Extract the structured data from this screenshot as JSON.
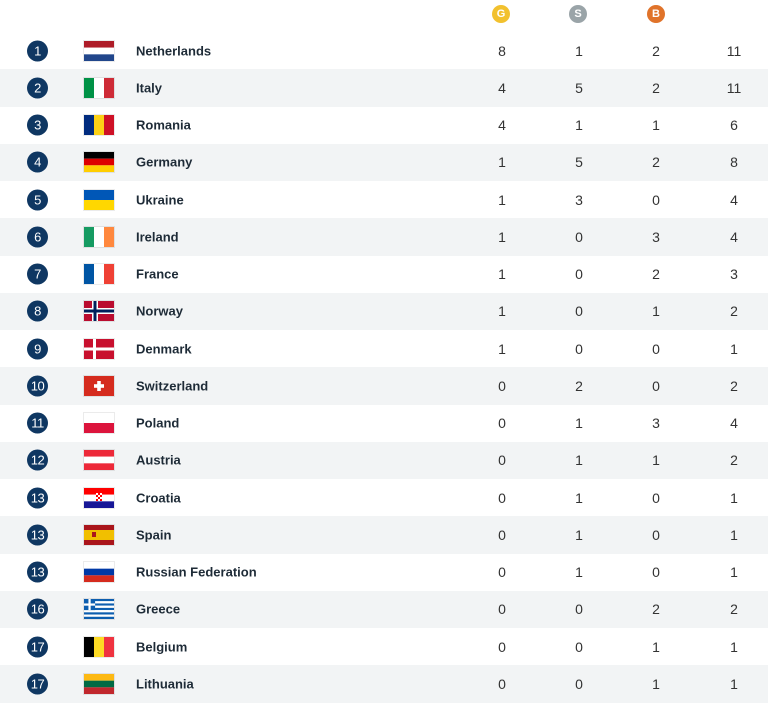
{
  "header": {
    "gold_label": "G",
    "silver_label": "S",
    "bronze_label": "B"
  },
  "rows": [
    {
      "rank": "1",
      "country": "Netherlands",
      "flag": "netherlands",
      "gold": "8",
      "silver": "1",
      "bronze": "2",
      "total": "11"
    },
    {
      "rank": "2",
      "country": "Italy",
      "flag": "italy",
      "gold": "4",
      "silver": "5",
      "bronze": "2",
      "total": "11"
    },
    {
      "rank": "3",
      "country": "Romania",
      "flag": "romania",
      "gold": "4",
      "silver": "1",
      "bronze": "1",
      "total": "6"
    },
    {
      "rank": "4",
      "country": "Germany",
      "flag": "germany",
      "gold": "1",
      "silver": "5",
      "bronze": "2",
      "total": "8"
    },
    {
      "rank": "5",
      "country": "Ukraine",
      "flag": "ukraine",
      "gold": "1",
      "silver": "3",
      "bronze": "0",
      "total": "4"
    },
    {
      "rank": "6",
      "country": "Ireland",
      "flag": "ireland",
      "gold": "1",
      "silver": "0",
      "bronze": "3",
      "total": "4"
    },
    {
      "rank": "7",
      "country": "France",
      "flag": "france",
      "gold": "1",
      "silver": "0",
      "bronze": "2",
      "total": "3"
    },
    {
      "rank": "8",
      "country": "Norway",
      "flag": "norway",
      "gold": "1",
      "silver": "0",
      "bronze": "1",
      "total": "2"
    },
    {
      "rank": "9",
      "country": "Denmark",
      "flag": "denmark",
      "gold": "1",
      "silver": "0",
      "bronze": "0",
      "total": "1"
    },
    {
      "rank": "10",
      "country": "Switzerland",
      "flag": "switzerland",
      "gold": "0",
      "silver": "2",
      "bronze": "0",
      "total": "2"
    },
    {
      "rank": "11",
      "country": "Poland",
      "flag": "poland",
      "gold": "0",
      "silver": "1",
      "bronze": "3",
      "total": "4"
    },
    {
      "rank": "12",
      "country": "Austria",
      "flag": "austria",
      "gold": "0",
      "silver": "1",
      "bronze": "1",
      "total": "2"
    },
    {
      "rank": "13",
      "country": "Croatia",
      "flag": "croatia",
      "gold": "0",
      "silver": "1",
      "bronze": "0",
      "total": "1"
    },
    {
      "rank": "13",
      "country": "Spain",
      "flag": "spain",
      "gold": "0",
      "silver": "1",
      "bronze": "0",
      "total": "1"
    },
    {
      "rank": "13",
      "country": "Russian Federation",
      "flag": "russia",
      "gold": "0",
      "silver": "1",
      "bronze": "0",
      "total": "1"
    },
    {
      "rank": "16",
      "country": "Greece",
      "flag": "greece",
      "gold": "0",
      "silver": "0",
      "bronze": "2",
      "total": "2"
    },
    {
      "rank": "17",
      "country": "Belgium",
      "flag": "belgium",
      "gold": "0",
      "silver": "0",
      "bronze": "1",
      "total": "1"
    },
    {
      "rank": "17",
      "country": "Lithuania",
      "flag": "lithuania",
      "gold": "0",
      "silver": "0",
      "bronze": "1",
      "total": "1"
    }
  ]
}
